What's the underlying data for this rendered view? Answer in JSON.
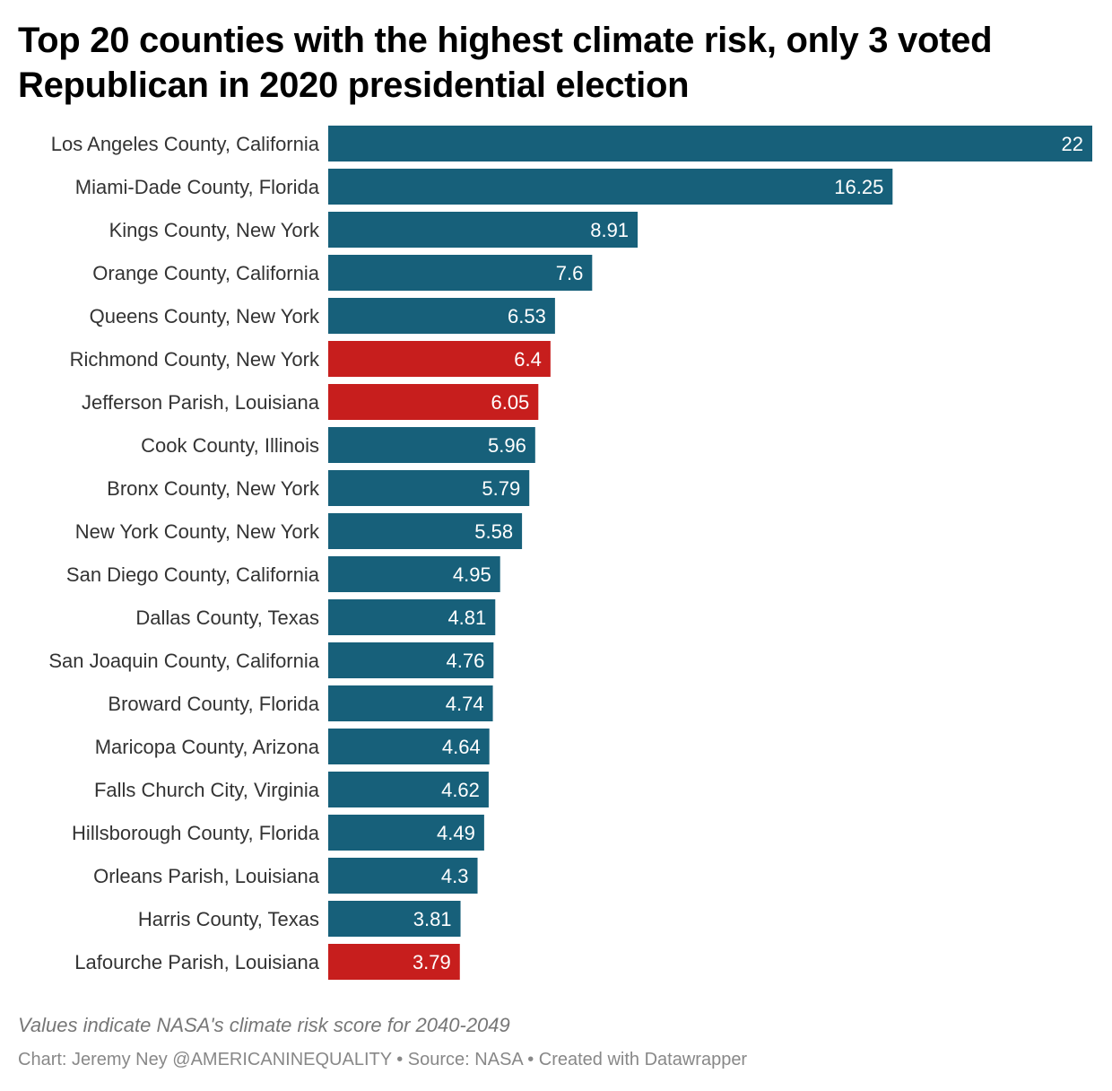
{
  "title": "Top 20 counties with the highest climate risk, only 3 voted Republican in 2020 presidential election",
  "notes": "Values indicate NASA's climate risk score for 2040-2049",
  "footer": "Chart: Jeremy Ney @AMERICANINEQUALITY • Source: NASA • Created with Datawrapper",
  "colors": {
    "democrat": "#17607a",
    "republican": "#c71e1d"
  },
  "chart_data": {
    "type": "bar",
    "orientation": "horizontal",
    "title": "Top 20 counties with the highest climate risk, only 3 voted Republican in 2020 presidential election",
    "xlim": [
      0,
      22
    ],
    "grid": false,
    "categories": [
      "Los Angeles County, California",
      "Miami-Dade County, Florida",
      "Kings County, New York",
      "Orange County, California",
      "Queens County, New York",
      "Richmond County, New York",
      "Jefferson Parish, Louisiana",
      "Cook County, Illinois",
      "Bronx County, New York",
      "New York County, New York",
      "San Diego County, California",
      "Dallas County, Texas",
      "San Joaquin County, California",
      "Broward County, Florida",
      "Maricopa County, Arizona",
      "Falls Church City, Virginia",
      "Hillsborough County, Florida",
      "Orleans Parish, Louisiana",
      "Harris County, Texas",
      "Lafourche Parish, Louisiana"
    ],
    "values": [
      22,
      16.25,
      8.91,
      7.6,
      6.53,
      6.4,
      6.05,
      5.96,
      5.79,
      5.58,
      4.95,
      4.81,
      4.76,
      4.74,
      4.64,
      4.62,
      4.49,
      4.3,
      3.81,
      3.79
    ],
    "value_labels": [
      "22",
      "16.25",
      "8.91",
      "7.6",
      "6.53",
      "6.4",
      "6.05",
      "5.96",
      "5.79",
      "5.58",
      "4.95",
      "4.81",
      "4.76",
      "4.74",
      "4.64",
      "4.62",
      "4.49",
      "4.3",
      "3.81",
      "3.79"
    ],
    "bar_colors": [
      "democrat",
      "democrat",
      "democrat",
      "democrat",
      "democrat",
      "republican",
      "republican",
      "democrat",
      "democrat",
      "democrat",
      "democrat",
      "democrat",
      "democrat",
      "democrat",
      "democrat",
      "democrat",
      "democrat",
      "democrat",
      "democrat",
      "republican"
    ]
  }
}
